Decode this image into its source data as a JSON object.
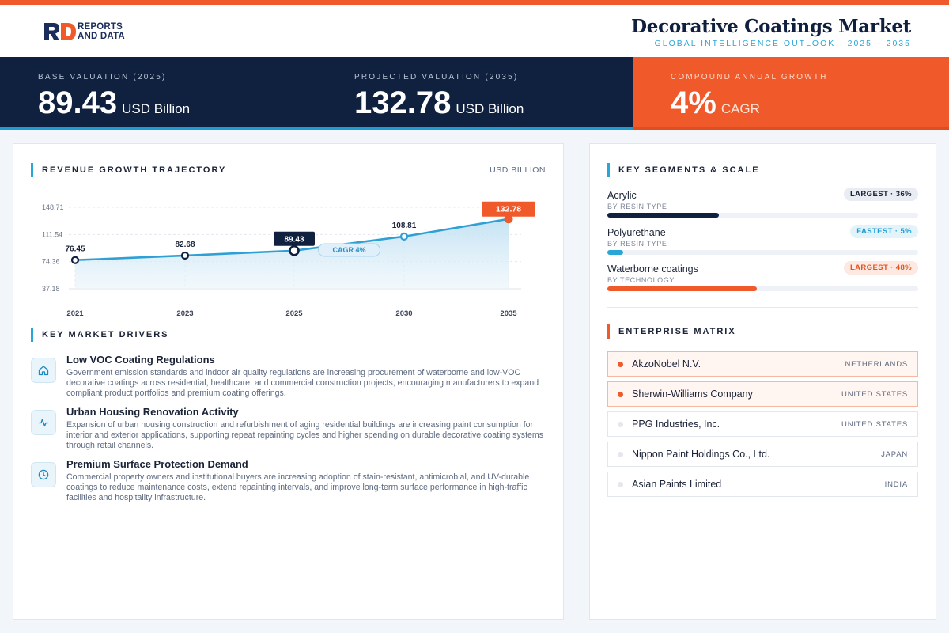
{
  "brand": {
    "logo_mark": "RD",
    "logo_line1": "REPORTS",
    "logo_line2": "AND DATA",
    "colors": {
      "navy": "#0f213f",
      "orange": "#f0592a",
      "blue": "#29a6d8"
    }
  },
  "header": {
    "title": "Decorative Coatings Market",
    "subtitle": "GLOBAL INTELLIGENCE OUTLOOK  ·  2025 – 2035"
  },
  "kpis": [
    {
      "label": "BASE VALUATION (2025)",
      "value": "89.43",
      "unit": "USD Billion"
    },
    {
      "label": "PROJECTED VALUATION (2035)",
      "value": "132.78",
      "unit": "USD Billion"
    },
    {
      "label": "COMPOUND ANNUAL GROWTH",
      "value": "4%",
      "unit": "CAGR"
    }
  ],
  "trajectory": {
    "title": "REVENUE GROWTH TRAJECTORY",
    "units": "USD BILLION",
    "cagr_label": "CAGR 4%"
  },
  "chart_data": {
    "type": "area",
    "title": "REVENUE GROWTH TRAJECTORY",
    "ylabel": "USD BILLION",
    "categories": [
      "2021",
      "2023",
      "2025",
      "2030",
      "2035"
    ],
    "values": [
      76.45,
      82.68,
      89.43,
      108.81,
      132.78
    ],
    "value_labels": [
      "76.45",
      "82.68",
      "89.43",
      "108.81",
      "132.78"
    ],
    "y_ticks": [
      148.71,
      111.54,
      74.36,
      37.18
    ],
    "y_tick_labels": [
      "148.71",
      "111.54",
      "74.36",
      "37.18"
    ],
    "ylim": [
      37.18,
      148.71
    ],
    "highlight": {
      "2025": "base",
      "2035": "projected"
    },
    "annotation": "CAGR 4%",
    "grid": true
  },
  "drivers": {
    "title": "KEY MARKET DRIVERS",
    "items": [
      {
        "icon": "home-icon",
        "title": "Low VOC Coating Regulations",
        "text": "Government emission standards and indoor air quality regulations are increasing procurement of waterborne and low-VOC decorative coatings across residential, healthcare, and commercial construction projects, encouraging manufacturers to expand compliant product portfolios and premium coating offerings."
      },
      {
        "icon": "activity-icon",
        "title": "Urban Housing Renovation Activity",
        "text": "Expansion of urban housing construction and refurbishment of aging residential buildings are increasing paint consumption for interior and exterior applications, supporting repeat repainting cycles and higher spending on durable decorative coating systems through retail channels."
      },
      {
        "icon": "clock-icon",
        "title": "Premium Surface Protection Demand",
        "text": "Commercial property owners and institutional buyers are increasing adoption of stain-resistant, antimicrobial, and UV-durable coatings to reduce maintenance costs, extend repainting intervals, and improve long-term surface performance in high-traffic facilities and hospitality infrastructure."
      }
    ]
  },
  "segments": {
    "title": "KEY SEGMENTS & SCALE",
    "items": [
      {
        "name": "Acrylic",
        "type": "BY RESIN TYPE",
        "badge": "LARGEST · 36%",
        "share": 0.36,
        "color": "#0f213f",
        "badge_style": "gray"
      },
      {
        "name": "Polyurethane",
        "type": "BY RESIN TYPE",
        "badge": "FASTEST · 5%",
        "share": 0.05,
        "color": "#29a6d8",
        "badge_style": "blue"
      },
      {
        "name": "Waterborne coatings",
        "type": "BY TECHNOLOGY",
        "badge": "LARGEST · 48%",
        "share": 0.48,
        "color": "#f0592a",
        "badge_style": "orange"
      }
    ]
  },
  "enterprise": {
    "title": "ENTERPRISE MATRIX",
    "items": [
      {
        "name": "AkzoNobel N.V.",
        "country": "NETHERLANDS",
        "highlight": true
      },
      {
        "name": "Sherwin-Williams Company",
        "country": "UNITED STATES",
        "highlight": true
      },
      {
        "name": "PPG Industries, Inc.",
        "country": "UNITED STATES",
        "highlight": false
      },
      {
        "name": "Nippon Paint Holdings Co., Ltd.",
        "country": "JAPAN",
        "highlight": false
      },
      {
        "name": "Asian Paints Limited",
        "country": "INDIA",
        "highlight": false
      }
    ]
  }
}
